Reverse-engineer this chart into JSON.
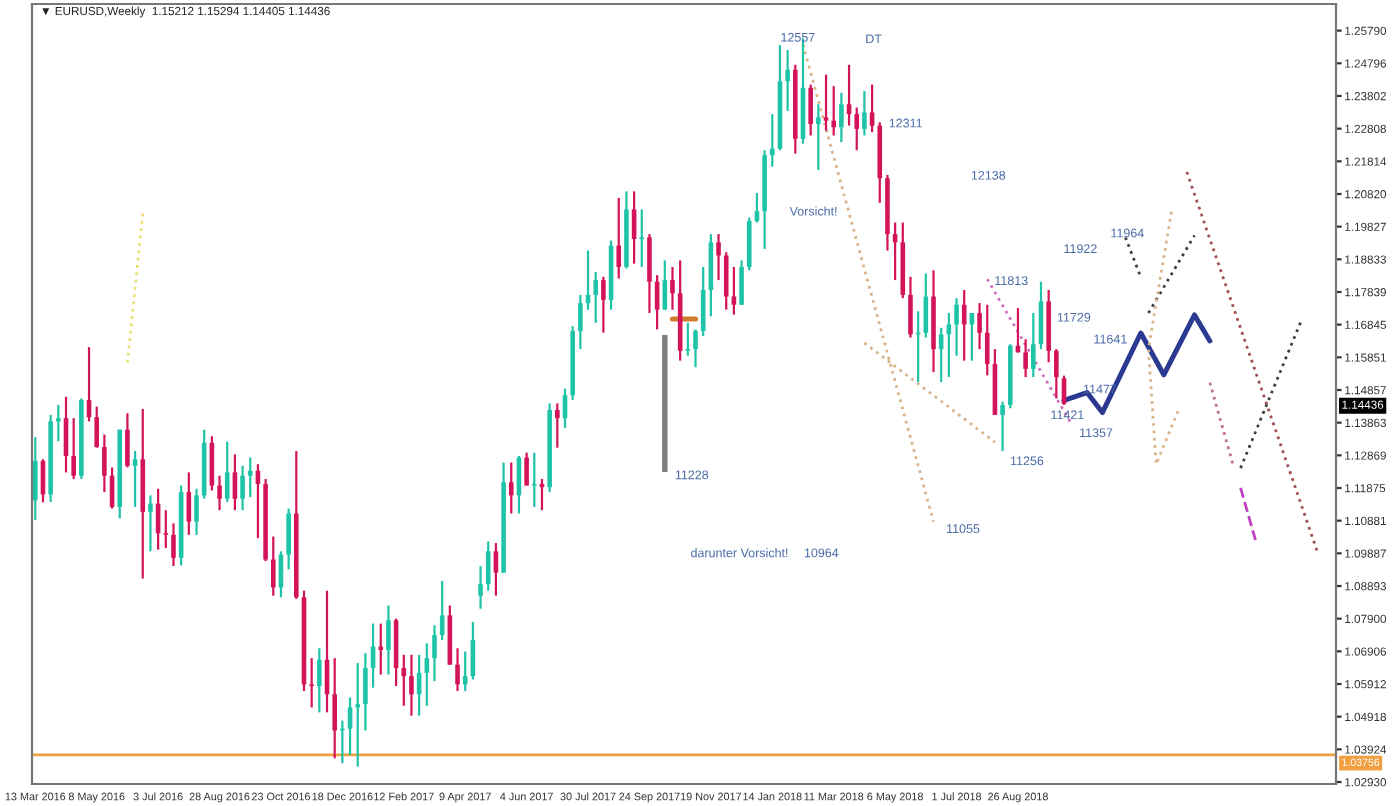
{
  "chart_data": {
    "type": "candlestick",
    "title": "▼ EURUSD,Weekly  1.15212 1.15294 1.14405 1.14436",
    "x": [
      "2016-03-13",
      "2016-03-20",
      "2016-03-27",
      "2016-04-03",
      "2016-04-10",
      "2016-04-17",
      "2016-04-24",
      "2016-05-01",
      "2016-05-08",
      "2016-05-15",
      "2016-05-22",
      "2016-05-29",
      "2016-06-05",
      "2016-06-12",
      "2016-06-19",
      "2016-06-26",
      "2016-07-03",
      "2016-07-10",
      "2016-07-17",
      "2016-07-24",
      "2016-07-31",
      "2016-08-07",
      "2016-08-14",
      "2016-08-21",
      "2016-08-28",
      "2016-09-04",
      "2016-09-11",
      "2016-09-18",
      "2016-09-25",
      "2016-10-02",
      "2016-10-09",
      "2016-10-16",
      "2016-10-23",
      "2016-10-30",
      "2016-11-06",
      "2016-11-13",
      "2016-11-20",
      "2016-11-27",
      "2016-12-04",
      "2016-12-11",
      "2016-12-18",
      "2016-12-25",
      "2017-01-01",
      "2017-01-08",
      "2017-01-15",
      "2017-01-22",
      "2017-01-29",
      "2017-02-05",
      "2017-02-12",
      "2017-02-19",
      "2017-02-26",
      "2017-03-05",
      "2017-03-12",
      "2017-03-19",
      "2017-03-26",
      "2017-04-02",
      "2017-04-09",
      "2017-04-16",
      "2017-04-23",
      "2017-04-30",
      "2017-05-07",
      "2017-05-14",
      "2017-05-21",
      "2017-05-28",
      "2017-06-04",
      "2017-06-11",
      "2017-06-18",
      "2017-06-25",
      "2017-07-02",
      "2017-07-09",
      "2017-07-16",
      "2017-07-23",
      "2017-07-30",
      "2017-08-06",
      "2017-08-13",
      "2017-08-20",
      "2017-08-27",
      "2017-09-03",
      "2017-09-10",
      "2017-09-17",
      "2017-09-24",
      "2017-10-01",
      "2017-10-08",
      "2017-10-15",
      "2017-10-22",
      "2017-10-29",
      "2017-11-05",
      "2017-11-12",
      "2017-11-19",
      "2017-11-26",
      "2017-12-03",
      "2017-12-10",
      "2017-12-17",
      "2017-12-24",
      "2017-12-31",
      "2018-01-07",
      "2018-01-14",
      "2018-01-21",
      "2018-01-28",
      "2018-02-04",
      "2018-02-11",
      "2018-02-18",
      "2018-02-25",
      "2018-03-04",
      "2018-03-11",
      "2018-03-18",
      "2018-03-25",
      "2018-04-01",
      "2018-04-08",
      "2018-04-15",
      "2018-04-22",
      "2018-04-29",
      "2018-05-06",
      "2018-05-13",
      "2018-05-20",
      "2018-05-27",
      "2018-06-03",
      "2018-06-10",
      "2018-06-17",
      "2018-06-24",
      "2018-07-01",
      "2018-07-08",
      "2018-07-15",
      "2018-07-22",
      "2018-07-29",
      "2018-08-05",
      "2018-08-12",
      "2018-08-19",
      "2018-08-26",
      "2018-09-02",
      "2018-09-09",
      "2018-09-16",
      "2018-09-23",
      "2018-09-30",
      "2018-10-07"
    ],
    "ohlc": [
      [
        1.115,
        1.1342,
        1.109,
        1.127
      ],
      [
        1.127,
        1.1275,
        1.1144,
        1.1168
      ],
      [
        1.1168,
        1.141,
        1.1145,
        1.139
      ],
      [
        1.139,
        1.144,
        1.133,
        1.14
      ],
      [
        1.14,
        1.1465,
        1.1235,
        1.1285
      ],
      [
        1.1285,
        1.14,
        1.1215,
        1.1225
      ],
      [
        1.1225,
        1.146,
        1.1215,
        1.1455
      ],
      [
        1.1455,
        1.1616,
        1.139,
        1.1403
      ],
      [
        1.1403,
        1.1435,
        1.131,
        1.1312
      ],
      [
        1.1312,
        1.135,
        1.1175,
        1.1225
      ],
      [
        1.1225,
        1.125,
        1.1125,
        1.113
      ],
      [
        1.113,
        1.1365,
        1.1095,
        1.1365
      ],
      [
        1.1365,
        1.1415,
        1.125,
        1.1255
      ],
      [
        1.1255,
        1.13,
        1.113,
        1.1275
      ],
      [
        1.1275,
        1.1428,
        1.0912,
        1.1115
      ],
      [
        1.1115,
        1.1165,
        1.0995,
        1.114
      ],
      [
        1.114,
        1.1185,
        1.1,
        1.105
      ],
      [
        1.105,
        1.112,
        1.1005,
        1.1045
      ],
      [
        1.1045,
        1.108,
        1.095,
        1.0975
      ],
      [
        1.0975,
        1.1195,
        1.0952,
        1.1175
      ],
      [
        1.1175,
        1.1235,
        1.1045,
        1.1085
      ],
      [
        1.1085,
        1.1185,
        1.1045,
        1.1165
      ],
      [
        1.1165,
        1.1365,
        1.1155,
        1.1325
      ],
      [
        1.1325,
        1.1345,
        1.118,
        1.1195
      ],
      [
        1.1195,
        1.1225,
        1.112,
        1.1155
      ],
      [
        1.1155,
        1.1328,
        1.1145,
        1.1235
      ],
      [
        1.1235,
        1.129,
        1.112,
        1.1155
      ],
      [
        1.1155,
        1.1255,
        1.112,
        1.1225
      ],
      [
        1.1225,
        1.128,
        1.116,
        1.124
      ],
      [
        1.124,
        1.126,
        1.1035,
        1.12
      ],
      [
        1.12,
        1.1215,
        1.0965,
        1.097
      ],
      [
        1.097,
        1.104,
        1.086,
        1.0885
      ],
      [
        1.0885,
        1.0995,
        1.0855,
        1.0985
      ],
      [
        1.0985,
        1.1125,
        1.094,
        1.111
      ],
      [
        1.111,
        1.13,
        1.085,
        1.0855
      ],
      [
        1.0855,
        1.0875,
        1.057,
        1.059
      ],
      [
        1.059,
        1.067,
        1.052,
        1.0585
      ],
      [
        1.0585,
        1.07,
        1.0505,
        1.0665
      ],
      [
        1.0665,
        1.0875,
        1.0505,
        1.056
      ],
      [
        1.056,
        1.067,
        1.0365,
        1.045
      ],
      [
        1.045,
        1.048,
        1.035,
        1.0455
      ],
      [
        1.0455,
        1.055,
        1.0375,
        1.052
      ],
      [
        1.052,
        1.0655,
        1.034,
        1.053
      ],
      [
        1.053,
        1.0685,
        1.045,
        1.064
      ],
      [
        1.064,
        1.0775,
        1.058,
        1.0705
      ],
      [
        1.0705,
        1.0775,
        1.062,
        1.0695
      ],
      [
        1.0695,
        1.083,
        1.062,
        1.0785
      ],
      [
        1.0785,
        1.079,
        1.0585,
        1.064
      ],
      [
        1.064,
        1.068,
        1.0525,
        1.0615
      ],
      [
        1.0615,
        1.068,
        1.0495,
        1.056
      ],
      [
        1.056,
        1.068,
        1.0495,
        1.0625
      ],
      [
        1.0625,
        1.0715,
        1.0525,
        1.067
      ],
      [
        1.067,
        1.077,
        1.06,
        1.074
      ],
      [
        1.074,
        1.0905,
        1.0725,
        1.08
      ],
      [
        1.08,
        1.083,
        1.065,
        1.065
      ],
      [
        1.065,
        1.07,
        1.057,
        1.059
      ],
      [
        1.059,
        1.069,
        1.057,
        1.0615
      ],
      [
        1.0615,
        1.078,
        1.0605,
        1.0725
      ],
      [
        1.086,
        1.095,
        1.082,
        1.0895
      ],
      [
        1.0895,
        1.1025,
        1.0875,
        1.0995
      ],
      [
        1.0995,
        1.102,
        1.086,
        1.093
      ],
      [
        1.093,
        1.1265,
        1.093,
        1.1205
      ],
      [
        1.1205,
        1.1265,
        1.111,
        1.1165
      ],
      [
        1.1165,
        1.1285,
        1.111,
        1.128
      ],
      [
        1.128,
        1.1295,
        1.1195,
        1.1195
      ],
      [
        1.1195,
        1.1295,
        1.113,
        1.12
      ],
      [
        1.12,
        1.1215,
        1.112,
        1.119
      ],
      [
        1.119,
        1.1445,
        1.1175,
        1.1425
      ],
      [
        1.1425,
        1.1445,
        1.131,
        1.14
      ],
      [
        1.14,
        1.149,
        1.137,
        1.147
      ],
      [
        1.147,
        1.168,
        1.1455,
        1.1665
      ],
      [
        1.1665,
        1.1775,
        1.161,
        1.175
      ],
      [
        1.175,
        1.191,
        1.173,
        1.1775
      ],
      [
        1.1775,
        1.1845,
        1.169,
        1.182
      ],
      [
        1.182,
        1.183,
        1.166,
        1.176
      ],
      [
        1.176,
        1.194,
        1.173,
        1.1925
      ],
      [
        1.1925,
        1.207,
        1.1825,
        1.186
      ],
      [
        1.186,
        1.209,
        1.1855,
        1.2035
      ],
      [
        1.2035,
        1.209,
        1.187,
        1.1945
      ],
      [
        1.1945,
        1.2035,
        1.186,
        1.195
      ],
      [
        1.195,
        1.196,
        1.172,
        1.1815
      ],
      [
        1.1815,
        1.1835,
        1.167,
        1.173
      ],
      [
        1.173,
        1.188,
        1.173,
        1.182
      ],
      [
        1.182,
        1.186,
        1.173,
        1.178
      ],
      [
        1.178,
        1.188,
        1.1575,
        1.1605
      ],
      [
        1.1605,
        1.169,
        1.159,
        1.161
      ],
      [
        1.161,
        1.167,
        1.1555,
        1.1665
      ],
      [
        1.1665,
        1.186,
        1.165,
        1.179
      ],
      [
        1.179,
        1.196,
        1.171,
        1.1935
      ],
      [
        1.1935,
        1.196,
        1.182,
        1.1895
      ],
      [
        1.1895,
        1.1905,
        1.173,
        1.177
      ],
      [
        1.177,
        1.186,
        1.1715,
        1.1745
      ],
      [
        1.1745,
        1.188,
        1.1745,
        1.186
      ],
      [
        1.186,
        1.201,
        1.185,
        1.2
      ],
      [
        1.2,
        1.2085,
        1.1995,
        1.203
      ],
      [
        1.203,
        1.2215,
        1.1915,
        1.22
      ],
      [
        1.22,
        1.2325,
        1.2165,
        1.222
      ],
      [
        1.222,
        1.2535,
        1.2215,
        1.2425
      ],
      [
        1.2425,
        1.252,
        1.2335,
        1.246
      ],
      [
        1.246,
        1.2475,
        1.2205,
        1.225
      ],
      [
        1.225,
        1.2555,
        1.2235,
        1.2405
      ],
      [
        1.2405,
        1.2415,
        1.226,
        1.2295
      ],
      [
        1.2295,
        1.2355,
        1.2155,
        1.2315
      ],
      [
        1.2315,
        1.2445,
        1.2275,
        1.2305
      ],
      [
        1.2305,
        1.241,
        1.226,
        1.2285
      ],
      [
        1.2285,
        1.239,
        1.224,
        1.2355
      ],
      [
        1.2355,
        1.2475,
        1.229,
        1.2325
      ],
      [
        1.2325,
        1.2345,
        1.2215,
        1.228
      ],
      [
        1.228,
        1.2395,
        1.226,
        1.233
      ],
      [
        1.233,
        1.2415,
        1.227,
        1.229
      ],
      [
        1.229,
        1.23,
        1.2055,
        1.213
      ],
      [
        1.213,
        1.214,
        1.191,
        1.196
      ],
      [
        1.196,
        1.1995,
        1.182,
        1.1935
      ],
      [
        1.1935,
        1.1995,
        1.1765,
        1.1775
      ],
      [
        1.1775,
        1.183,
        1.1645,
        1.1655
      ],
      [
        1.1655,
        1.1725,
        1.151,
        1.166
      ],
      [
        1.166,
        1.184,
        1.1645,
        1.177
      ],
      [
        1.177,
        1.185,
        1.154,
        1.161
      ],
      [
        1.161,
        1.1675,
        1.151,
        1.1655
      ],
      [
        1.1655,
        1.172,
        1.1525,
        1.1685
      ],
      [
        1.1685,
        1.1765,
        1.159,
        1.1745
      ],
      [
        1.1745,
        1.179,
        1.1575,
        1.1685
      ],
      [
        1.1685,
        1.172,
        1.1575,
        1.172
      ],
      [
        1.172,
        1.175,
        1.161,
        1.166
      ],
      [
        1.166,
        1.1745,
        1.153,
        1.1565
      ],
      [
        1.1565,
        1.161,
        1.141,
        1.141
      ],
      [
        1.141,
        1.145,
        1.13,
        1.144
      ],
      [
        1.144,
        1.1625,
        1.143,
        1.162
      ],
      [
        1.162,
        1.1735,
        1.16,
        1.16
      ],
      [
        1.16,
        1.164,
        1.1525,
        1.155
      ],
      [
        1.155,
        1.172,
        1.1525,
        1.1625
      ],
      [
        1.1625,
        1.1815,
        1.161,
        1.1755
      ],
      [
        1.1755,
        1.179,
        1.157,
        1.1605
      ],
      [
        1.1605,
        1.161,
        1.146,
        1.1525
      ],
      [
        1.15212,
        1.15294,
        1.14405,
        1.14436
      ]
    ],
    "colors": [
      "#1fc4a8",
      "#d4145a",
      "#1fc4a8",
      "#1fc4a8",
      "#d4145a",
      "#d4145a",
      "#1fc4a8",
      "#d4145a",
      "#d4145a",
      "#d4145a",
      "#d4145a",
      "#1fc4a8",
      "#d4145a",
      "#1fc4a8",
      "#d4145a",
      "#1fc4a8",
      "#d4145a",
      "#d4145a",
      "#d4145a",
      "#1fc4a8",
      "#d4145a",
      "#1fc4a8",
      "#1fc4a8",
      "#d4145a",
      "#d4145a",
      "#1fc4a8",
      "#d4145a",
      "#1fc4a8",
      "#1fc4a8",
      "#d4145a",
      "#d4145a",
      "#d4145a",
      "#1fc4a8",
      "#1fc4a8",
      "#d4145a",
      "#d4145a",
      "#d4145a",
      "#1fc4a8",
      "#d4145a",
      "#d4145a",
      "#1fc4a8",
      "#1fc4a8",
      "#1fc4a8",
      "#1fc4a8",
      "#1fc4a8",
      "#d4145a",
      "#1fc4a8",
      "#d4145a",
      "#d4145a",
      "#d4145a",
      "#1fc4a8",
      "#1fc4a8",
      "#1fc4a8",
      "#1fc4a8",
      "#d4145a",
      "#d4145a",
      "#1fc4a8",
      "#1fc4a8",
      "#1fc4a8",
      "#1fc4a8",
      "#d4145a",
      "#1fc4a8",
      "#d4145a",
      "#1fc4a8",
      "#d4145a",
      "#1fc4a8",
      "#d4145a",
      "#1fc4a8",
      "#d4145a",
      "#1fc4a8",
      "#1fc4a8",
      "#1fc4a8",
      "#1fc4a8",
      "#1fc4a8",
      "#d4145a",
      "#1fc4a8",
      "#d4145a",
      "#1fc4a8",
      "#d4145a",
      "#1fc4a8",
      "#d4145a",
      "#d4145a",
      "#1fc4a8",
      "#d4145a",
      "#d4145a",
      "#1fc4a8",
      "#1fc4a8",
      "#1fc4a8",
      "#1fc4a8",
      "#d4145a",
      "#d4145a",
      "#d4145a",
      "#1fc4a8",
      "#1fc4a8",
      "#1fc4a8",
      "#1fc4a8",
      "#1fc4a8",
      "#1fc4a8",
      "#1fc4a8",
      "#d4145a",
      "#1fc4a8",
      "#d4145a",
      "#1fc4a8",
      "#d4145a",
      "#d4145a",
      "#1fc4a8",
      "#d4145a",
      "#d4145a",
      "#1fc4a8",
      "#d4145a",
      "#d4145a",
      "#d4145a",
      "#d4145a",
      "#d4145a",
      "#d4145a",
      "#1fc4a8",
      "#1fc4a8",
      "#d4145a",
      "#1fc4a8",
      "#1fc4a8",
      "#1fc4a8",
      "#d4145a",
      "#1fc4a8",
      "#d4145a",
      "#d4145a",
      "#d4145a",
      "#1fc4a8",
      "#1fc4a8",
      "#d4145a",
      "#d4145a",
      "#1fc4a8",
      "#1fc4a8",
      "#d4145a",
      "#d4145a",
      "#d4145a"
    ],
    "series": [
      {
        "type": "line",
        "color": "#2b3990",
        "line_style": "solid",
        "x": [
          "2018-10-07",
          "2018-10-28",
          "2018-11-11",
          "2018-12-16",
          "2019-01-06",
          "2019-02-03",
          "2019-02-17"
        ],
        "values": [
          1.1454,
          1.1478,
          1.1417,
          1.1659,
          1.1532,
          1.1714,
          1.1635
        ]
      },
      {
        "type": "line",
        "color": "#d9b48a",
        "line_style": "dotted",
        "x": [
          "2018-02-11",
          "2018-06-10"
        ],
        "values": [
          1.2537,
          1.1085
        ]
      },
      {
        "type": "line",
        "color": "#d9b48a",
        "line_style": "dotted",
        "x": [
          "2018-04-08",
          "2018-08-05"
        ],
        "values": [
          1.1629,
          1.1327
        ]
      },
      {
        "type": "line",
        "color": "#d070c0",
        "line_style": "dotted",
        "x": [
          "2018-07-29",
          "2018-10-14"
        ],
        "values": [
          1.1823,
          1.1381
        ]
      },
      {
        "type": "line",
        "color": "#404040",
        "line_style": "dotted",
        "x": [
          "2018-12-02",
          "2018-12-16"
        ],
        "values": [
          1.195,
          1.1829
        ]
      },
      {
        "type": "line",
        "color": "#404040",
        "line_style": "dotted",
        "x": [
          "2018-12-23",
          "2019-02-03"
        ],
        "values": [
          1.172,
          1.1956
        ]
      },
      {
        "type": "line",
        "color": "#d9b48a",
        "line_style": "dotted",
        "x": [
          "2019-01-13",
          "2018-12-23",
          "2018-12-30",
          "2019-01-20"
        ],
        "values": [
          1.2028,
          1.1611,
          1.126,
          1.143
        ]
      },
      {
        "type": "line",
        "color": "#a05050",
        "line_style": "dotted",
        "x": [
          "2019-01-27",
          "2019-05-26"
        ],
        "values": [
          1.2149,
          1.0994
        ]
      },
      {
        "type": "line",
        "color": "#c07090",
        "line_style": "dotted",
        "x": [
          "2019-02-17",
          "2019-03-10"
        ],
        "values": [
          1.1508,
          1.126
        ]
      },
      {
        "type": "line",
        "color": "#c040c0",
        "line_style": "dashed",
        "x": [
          "2019-03-17",
          "2019-03-31"
        ],
        "values": [
          1.1188,
          1.1024
        ]
      },
      {
        "type": "line",
        "color": "#404040",
        "line_style": "dotted",
        "x": [
          "2019-03-17",
          "2019-05-12"
        ],
        "values": [
          1.1248,
          1.1702
        ]
      },
      {
        "type": "line",
        "color": "#e8e070",
        "line_style": "dotted",
        "x": [
          "2016-06-19",
          "2016-06-05"
        ],
        "values": [
          1.2022,
          1.1569
        ]
      },
      {
        "type": "line",
        "color": "#d07a30",
        "line_style": "solid",
        "x": [
          "2017-10-15",
          "2017-11-05"
        ],
        "values": [
          1.1702,
          1.1702
        ]
      },
      {
        "type": "bar",
        "color": "#808080",
        "x": [
          "2017-10-08"
        ],
        "base": [
          1.1236
        ],
        "values": [
          0.0417
        ]
      }
    ],
    "annotations": [
      "12557",
      "DT",
      "12311",
      "Vorsicht!",
      "12138",
      "11964",
      "11922",
      "11813",
      "11729",
      "11641",
      "11477",
      "11421",
      "11357",
      "11256",
      "11228",
      "11055",
      "darunter Vorsicht!",
      "10964",
      "1.14436"
    ],
    "ref_lines": [
      {
        "axis": "y",
        "value": 1.03756,
        "label": "1.03756",
        "color": "#f0a040",
        "line_style": "solid"
      }
    ],
    "xlim": [
      "2016-03-10",
      "2019-06-12"
    ],
    "ylim": [
      1.0287,
      1.266
    ],
    "xticks": [
      {
        "value": "2016-03-13",
        "label": "13 Mar 2016"
      },
      {
        "value": "2016-05-08",
        "label": "8 May 2016"
      },
      {
        "value": "2016-07-03",
        "label": "3 Jul 2016"
      },
      {
        "value": "2016-08-28",
        "label": "28 Aug 2016"
      },
      {
        "value": "2016-10-23",
        "label": "23 Oct 2016"
      },
      {
        "value": "2016-12-18",
        "label": "18 Dec 2016"
      },
      {
        "value": "2017-02-12",
        "label": "12 Feb 2017"
      },
      {
        "value": "2017-04-09",
        "label": "9 Apr 2017"
      },
      {
        "value": "2017-06-04",
        "label": "4 Jun 2017"
      },
      {
        "value": "2017-07-30",
        "label": "30 Jul 2017"
      },
      {
        "value": "2017-09-24",
        "label": "24 Sep 2017"
      },
      {
        "value": "2017-11-19",
        "label": "19 Nov 2017"
      },
      {
        "value": "2018-01-14",
        "label": "14 Jan 2018"
      },
      {
        "value": "2018-03-11",
        "label": "11 Mar 2018"
      },
      {
        "value": "2018-05-06",
        "label": "6 May 2018"
      },
      {
        "value": "2018-07-01",
        "label": "1 Jul 2018"
      },
      {
        "value": "2018-08-26",
        "label": "26 Aug 2018"
      }
    ],
    "yticks": [
      {
        "value": 1.2579,
        "label": "1.25790"
      },
      {
        "value": 1.24796,
        "label": "1.24796"
      },
      {
        "value": 1.23802,
        "label": "1.23802"
      },
      {
        "value": 1.22808,
        "label": "1.22808"
      },
      {
        "value": 1.21814,
        "label": "1.21814"
      },
      {
        "value": 1.2082,
        "label": "1.20820"
      },
      {
        "value": 1.19827,
        "label": "1.19827"
      },
      {
        "value": 1.18833,
        "label": "1.18833"
      },
      {
        "value": 1.17839,
        "label": "1.17839"
      },
      {
        "value": 1.16845,
        "label": "1.16845"
      },
      {
        "value": 1.15851,
        "label": "1.15851"
      },
      {
        "value": 1.14857,
        "label": "1.14857"
      },
      {
        "value": 1.13863,
        "label": "1.13863"
      },
      {
        "value": 1.12869,
        "label": "1.12869"
      },
      {
        "value": 1.11875,
        "label": "1.11875"
      },
      {
        "value": 1.10881,
        "label": "1.10881"
      },
      {
        "value": 1.09887,
        "label": "1.09887"
      },
      {
        "value": 1.08893,
        "label": "1.08893"
      },
      {
        "value": 1.079,
        "label": "1.07900"
      },
      {
        "value": 1.06906,
        "label": "1.06906"
      },
      {
        "value": 1.05912,
        "label": "1.05912"
      },
      {
        "value": 1.04918,
        "label": "1.04918"
      },
      {
        "value": 1.03924,
        "label": "1.03924"
      },
      {
        "value": 1.0293,
        "label": "1.02930"
      }
    ]
  }
}
